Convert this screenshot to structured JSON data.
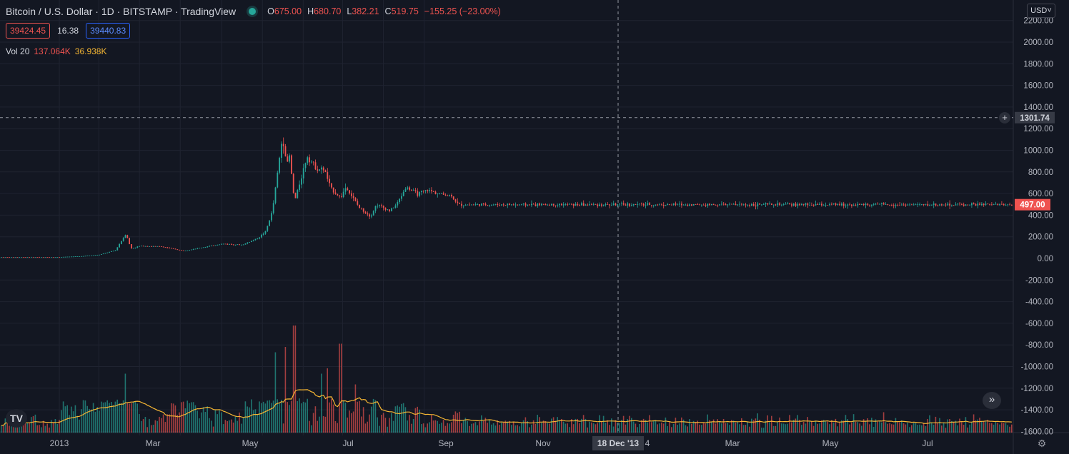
{
  "header": {
    "title": "Bitcoin / U.S. Dollar · 1D · BITSTAMP · TradingView",
    "ohlc": {
      "o_label": "O",
      "o": "675.00",
      "h_label": "H",
      "h": "680.70",
      "l_label": "L",
      "l": "382.21",
      "c_label": "C",
      "c": "519.75",
      "change": "−155.25 (−23.00%)"
    }
  },
  "bidask": {
    "bid": "39424.45",
    "spread": "16.38",
    "ask": "39440.83"
  },
  "volume_legend": {
    "label": "Vol 20",
    "volume": "137.064K",
    "ma": "36.938K"
  },
  "currency": "USD",
  "crosshair": {
    "price_label": "1301.74",
    "date_label": "18 Dec '13"
  },
  "last_price_label": "497.00",
  "icons": {
    "plus": "plus-circle-icon",
    "logo": "tradingview-logo-icon",
    "forward": "chevron-double-right-icon",
    "settings": "gear-icon"
  },
  "colors": {
    "background": "#131722",
    "up": "#26a69a",
    "down": "#ef5350",
    "ma": "#f7b733",
    "grid": "#1f2330"
  },
  "chart_data": {
    "type": "candlestick",
    "price_axis": {
      "range": [
        -1600,
        2300
      ],
      "tick_labels": [
        "2200.00",
        "2000.00",
        "1800.00",
        "1600.00",
        "1400.00",
        "1200.00",
        "1000.00",
        "800.00",
        "600.00",
        "400.00",
        "200.00",
        "0.00",
        "-200.00",
        "-400.00",
        "-600.00",
        "-800.00",
        "-1000.00",
        "-1200.00",
        "-1400.00",
        "-1600.00"
      ]
    },
    "time_axis": {
      "tick_labels": [
        "2013",
        "Mar",
        "May",
        "Jul",
        "Sep",
        "Nov",
        "4",
        "Mar",
        "May",
        "Jul"
      ]
    },
    "price_path": [
      [
        "2013-01-01",
        13
      ],
      [
        "2013-02-01",
        20
      ],
      [
        "2013-03-01",
        34
      ],
      [
        "2013-03-25",
        75
      ],
      [
        "2013-04-10",
        230
      ],
      [
        "2013-04-17",
        90
      ],
      [
        "2013-05-01",
        115
      ],
      [
        "2013-06-01",
        110
      ],
      [
        "2013-07-05",
        70
      ],
      [
        "2013-08-01",
        100
      ],
      [
        "2013-09-01",
        135
      ],
      [
        "2013-10-01",
        125
      ],
      [
        "2013-10-25",
        190
      ],
      [
        "2013-11-05",
        250
      ],
      [
        "2013-11-15",
        440
      ],
      [
        "2013-11-30",
        1130
      ],
      [
        "2013-12-07",
        860
      ],
      [
        "2013-12-10",
        980
      ],
      [
        "2013-12-18",
        520
      ],
      [
        "2013-12-25",
        680
      ],
      [
        "2014-01-06",
        950
      ],
      [
        "2014-01-20",
        830
      ],
      [
        "2014-02-01",
        820
      ],
      [
        "2014-02-10",
        650
      ],
      [
        "2014-02-25",
        560
      ],
      [
        "2014-03-05",
        660
      ],
      [
        "2014-03-25",
        470
      ],
      [
        "2014-04-11",
        390
      ],
      [
        "2014-04-20",
        500
      ],
      [
        "2014-05-10",
        440
      ],
      [
        "2014-05-20",
        500
      ],
      [
        "2014-06-03",
        660
      ],
      [
        "2014-06-20",
        595
      ],
      [
        "2014-07-05",
        630
      ],
      [
        "2014-07-25",
        595
      ],
      [
        "2014-08-10",
        580
      ],
      [
        "2014-08-20",
        497
      ]
    ],
    "volume_spikes": [
      [
        "2013-04-10",
        0.55
      ],
      [
        "2013-11-20",
        0.75
      ],
      [
        "2013-12-05",
        0.8
      ],
      [
        "2013-12-18",
        1.0
      ],
      [
        "2014-01-28",
        0.55
      ],
      [
        "2014-02-06",
        0.6
      ],
      [
        "2014-02-25",
        0.83
      ],
      [
        "2014-03-20",
        0.45
      ]
    ],
    "crosshair_date": "2013-12-18",
    "crosshair_price": 1301.74,
    "last_price": 497.0
  }
}
